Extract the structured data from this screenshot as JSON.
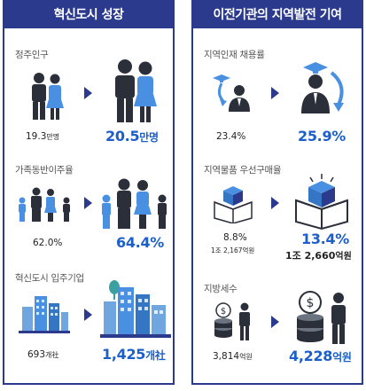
{
  "left_panel": {
    "title": "혁신도시 성장",
    "population": {
      "label": "정주인구",
      "before": "19.3",
      "before_unit": "만명",
      "after": "20.5",
      "after_unit": "만명"
    },
    "family": {
      "label": "가족동반이주율",
      "before": "62.0%",
      "after": "64.4%"
    },
    "companies": {
      "label": "혁신도시 입주기업",
      "before": "693",
      "before_unit": "개社",
      "after": "1,425",
      "after_unit": "개社"
    }
  },
  "right_panel": {
    "title": "이전기관의 지역발전 기여",
    "hiring": {
      "label": "지역인재 채용률",
      "before": "23.4%",
      "after": "25.9%"
    },
    "purchase": {
      "label": "지역물품 우선구매율",
      "before": "8.8%",
      "before_sub_num": "1조 2,167",
      "before_sub_unit": "억원",
      "after": "13.4%",
      "after_sub_num": "1조 2,660",
      "after_sub_unit": "억원"
    },
    "tax": {
      "label": "지방세수",
      "before": "3,814",
      "before_unit": "억원",
      "after": "4,228",
      "after_unit": "억원"
    }
  },
  "colors": {
    "navy": "#2b3a8c",
    "accent_blue": "#1d5fc9",
    "light_blue": "#4a90e2"
  },
  "icons": [
    "family-couple-icon",
    "family-group-icon",
    "city-building-icon",
    "graduate-hire-icon",
    "box-product-icon",
    "coin-tax-icon",
    "arrow-right-icon"
  ]
}
